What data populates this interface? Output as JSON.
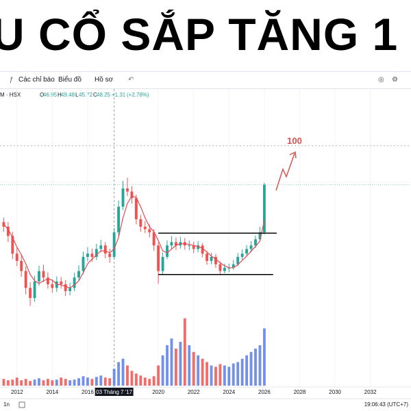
{
  "header": {
    "title": "U CỔ SẮP TĂNG 1"
  },
  "toolbar": {
    "indicators": "Các chỉ báo",
    "chart_type": "Biểu đồ",
    "profile": "Hồ sơ"
  },
  "symbol": "M · HSX",
  "ohlc": {
    "open_label": "O",
    "open": 46.95,
    "high_label": "H",
    "high": 49.48,
    "low_label": "L",
    "low": 45.72,
    "close_label": "C",
    "close": 48.25,
    "change": "+1.31",
    "change_pct": "(+2.78%)"
  },
  "footer": {
    "interval": "1n",
    "clock": "19:06:43 (UTC+7)"
  },
  "chart_data": {
    "type": "candlestick",
    "log_scale": true,
    "xlim": [
      2011.04,
      2034.3
    ],
    "xticks": [
      2012,
      2014,
      2016,
      2020,
      2022,
      2024,
      2026,
      2028,
      2030,
      2032
    ],
    "ylim": [
      4,
      320
    ],
    "vlim": [
      0,
      120
    ],
    "crosshair": {
      "x": 2017.5,
      "label": "03 Tháng 7 '17"
    },
    "up_color": "#26a69a",
    "down_color": "#ef5350",
    "volume_up_color": "#5b7ee5",
    "volume_down_color": "#ef5350",
    "ma_color": "#e5484d",
    "x": [
      2011.25,
      2011.5,
      2011.75,
      2012,
      2012.25,
      2012.5,
      2012.75,
      2013,
      2013.25,
      2013.5,
      2013.75,
      2014,
      2014.25,
      2014.5,
      2014.75,
      2015,
      2015.25,
      2015.5,
      2015.75,
      2016,
      2016.25,
      2016.5,
      2016.75,
      2017,
      2017.25,
      2017.5,
      2017.75,
      2018,
      2018.25,
      2018.5,
      2018.75,
      2019,
      2019.25,
      2019.5,
      2019.75,
      2020,
      2020.25,
      2020.5,
      2020.75,
      2021,
      2021.25,
      2021.5,
      2021.75,
      2022,
      2022.25,
      2022.5,
      2022.75,
      2023,
      2023.25,
      2023.5,
      2023.75,
      2024,
      2024.25,
      2024.5,
      2024.75,
      2025,
      2025.25,
      2025.5,
      2025.75,
      2026
    ],
    "open": [
      24,
      22,
      18.5,
      13.3,
      11.6,
      9.6,
      7.0,
      5.8,
      7.9,
      9.6,
      8.5,
      7.5,
      7.0,
      7.9,
      7.5,
      6.6,
      7.0,
      8.5,
      9.6,
      12.5,
      13.3,
      12.5,
      14.5,
      15.5,
      13.3,
      12.5,
      19.8,
      32,
      45,
      42.5,
      37.5,
      25.3,
      22,
      21,
      19.8,
      15.5,
      9.6,
      12.5,
      15.5,
      16.5,
      15.5,
      16.5,
      15.5,
      15.5,
      14.5,
      15.5,
      13.3,
      11.6,
      12.5,
      10.9,
      9.6,
      10.2,
      10.2,
      10.9,
      12.5,
      13.3,
      14.5,
      15.5,
      17.4,
      19.8
    ],
    "high": [
      26,
      24,
      20,
      15,
      13,
      10.5,
      7.8,
      8.8,
      10.6,
      10.8,
      9.4,
      8.2,
      8.7,
      8.6,
      8.1,
      7.7,
      9.3,
      10.7,
      13.8,
      15.0,
      14.6,
      16.0,
      17.2,
      16.5,
      14.6,
      21.5,
      36,
      52,
      55,
      47,
      40,
      27.5,
      24.5,
      23,
      21,
      16.5,
      13.6,
      17,
      18.5,
      18,
      18.2,
      17.8,
      17,
      16.6,
      16.8,
      16.2,
      14,
      13.5,
      13.2,
      11.5,
      11,
      11,
      11.8,
      13.4,
      14.4,
      15.6,
      16.8,
      18.6,
      22,
      50
    ],
    "low": [
      20,
      16.5,
      12,
      10.5,
      8.6,
      6.2,
      5.0,
      5.4,
      7.3,
      7.8,
      6.9,
      6.4,
      6.5,
      6.9,
      6.0,
      6.1,
      6.6,
      8.0,
      9.0,
      11.5,
      11.4,
      11.8,
      13.6,
      12.2,
      11.2,
      12.0,
      18.5,
      30,
      39,
      34,
      23,
      20,
      19.5,
      18,
      14,
      7.6,
      9.0,
      12,
      14.5,
      14.2,
      14.6,
      14.3,
      14.2,
      13.4,
      13.6,
      12.4,
      10.8,
      10.9,
      10.2,
      9.1,
      9.2,
      9.4,
      9.8,
      10.5,
      11.9,
      12.8,
      13.6,
      14.8,
      16.8,
      19
    ],
    "close": [
      22,
      18.5,
      13.3,
      11.6,
      9.6,
      7.0,
      5.8,
      7.9,
      9.6,
      8.5,
      7.5,
      7.0,
      7.9,
      7.5,
      6.6,
      7.0,
      8.5,
      9.6,
      12.5,
      13.3,
      12.5,
      14.5,
      15.5,
      13.3,
      12.5,
      19.8,
      32,
      45,
      42.5,
      37.5,
      25.3,
      22,
      21,
      19.8,
      15.5,
      9.6,
      12.5,
      15.5,
      16.5,
      15.5,
      16.5,
      15.5,
      15.5,
      14.5,
      15.5,
      13.3,
      11.6,
      12.5,
      10.9,
      9.6,
      10.2,
      10.2,
      10.9,
      12.5,
      13.3,
      14.5,
      15.5,
      17.4,
      19.8,
      48.25
    ],
    "ma": [
      23,
      21,
      18,
      15,
      13,
      11,
      9,
      8,
      7.6,
      8,
      8.3,
      8.1,
      7.5,
      7.4,
      7.2,
      7.0,
      7.4,
      8,
      9.3,
      11,
      12,
      13,
      14,
      14,
      13.5,
      14.5,
      18,
      26,
      34,
      39,
      38,
      32,
      26,
      22,
      20,
      17,
      14,
      13.5,
      14.5,
      15.5,
      16,
      16,
      15.8,
      15.5,
      15.2,
      14.7,
      13.7,
      12.7,
      12,
      11.2,
      10.6,
      10.2,
      10.2,
      10.8,
      11.7,
      12.7,
      13.9,
      15.2,
      16.8,
      25
    ],
    "volume": [
      10,
      8,
      9,
      12,
      8,
      10,
      7,
      9,
      11,
      8,
      10,
      8,
      9,
      12,
      10,
      8,
      9,
      11,
      14,
      12,
      10,
      13,
      15,
      12,
      11,
      25,
      35,
      40,
      30,
      22,
      18,
      15,
      12,
      10,
      14,
      30,
      45,
      60,
      70,
      55,
      65,
      100,
      60,
      50,
      45,
      40,
      35,
      30,
      28,
      32,
      30,
      28,
      33,
      35,
      40,
      45,
      50,
      55,
      60,
      85
    ],
    "channel": [
      {
        "value": 19.5,
        "x": [
          2020.0,
          2026.7
        ]
      },
      {
        "value": 9.0,
        "x": [
          2020.0,
          2026.5
        ]
      }
    ],
    "target": {
      "value": 100,
      "color": "#d9534f"
    }
  }
}
